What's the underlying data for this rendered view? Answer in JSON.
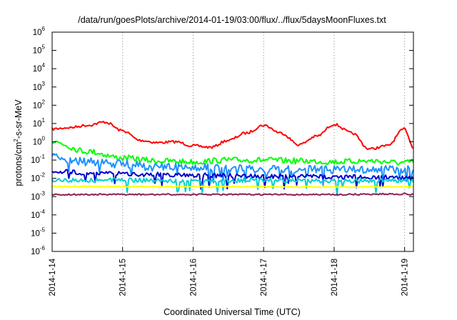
{
  "chart_data": {
    "type": "line",
    "title": "/data/run/goesPlots/archive/2014-01-19/03:00/flux/../flux/5daysMoonFluxes.txt",
    "xlabel": "Coordinated Universal Time (UTC)",
    "ylabel": "protons/cm²-s-sr-MeV",
    "ylabel_parts": [
      "protons/cm",
      "2",
      "-s-sr-MeV"
    ],
    "y_scale": "log",
    "ylim": [
      1e-06,
      1000000.0
    ],
    "xlim": [
      "2014-01-14",
      "2014-01-19 03:00"
    ],
    "x_ticks": [
      "2014-1-14",
      "2014-1-15",
      "2014-1-16",
      "2014-1-17",
      "2014-1-18",
      "2014-1-19"
    ],
    "y_ticks": [
      {
        "base": "10",
        "exp": "-6"
      },
      {
        "base": "10",
        "exp": "-5"
      },
      {
        "base": "10",
        "exp": "-4"
      },
      {
        "base": "10",
        "exp": "-3"
      },
      {
        "base": "10",
        "exp": "-2"
      },
      {
        "base": "10",
        "exp": "-1"
      },
      {
        "base": "10",
        "exp": "0"
      },
      {
        "base": "10",
        "exp": "1"
      },
      {
        "base": "10",
        "exp": "2"
      },
      {
        "base": "10",
        "exp": "3"
      },
      {
        "base": "10",
        "exp": "4"
      },
      {
        "base": "10",
        "exp": "5"
      },
      {
        "base": "10",
        "exp": "6"
      }
    ],
    "grid": "dotted vertical at day ticks",
    "series": [
      {
        "color": "#ff0000",
        "x": [
          "2014-01-14 00:00",
          "2014-01-14 06:00",
          "2014-01-14 12:00",
          "2014-01-14 18:00",
          "2014-01-15 00:00",
          "2014-01-15 06:00",
          "2014-01-15 12:00",
          "2014-01-15 18:00",
          "2014-01-16 00:00",
          "2014-01-16 06:00",
          "2014-01-16 12:00",
          "2014-01-16 18:00",
          "2014-01-17 00:00",
          "2014-01-17 06:00",
          "2014-01-17 12:00",
          "2014-01-17 18:00",
          "2014-01-18 00:00",
          "2014-01-18 06:00",
          "2014-01-18 12:00",
          "2014-01-18 18:00",
          "2014-01-19 00:00",
          "2014-01-19 03:00"
        ],
        "values": [
          5,
          6,
          8,
          12,
          4,
          1.2,
          0.9,
          1.0,
          0.6,
          0.5,
          1.2,
          3,
          8,
          3,
          0.7,
          2,
          9,
          3,
          0.4,
          0.6,
          5,
          0.5
        ]
      },
      {
        "color": "#00ff00",
        "x": [
          "2014-01-14 00:00",
          "2014-01-14 12:00",
          "2014-01-15 00:00",
          "2014-01-15 12:00",
          "2014-01-16 00:00",
          "2014-01-16 12:00",
          "2014-01-17 00:00",
          "2014-01-17 12:00",
          "2014-01-18 00:00",
          "2014-01-18 12:00",
          "2014-01-19 00:00",
          "2014-01-19 03:00"
        ],
        "values": [
          1.0,
          0.3,
          0.13,
          0.09,
          0.08,
          0.1,
          0.1,
          0.09,
          0.08,
          0.09,
          0.07,
          0.08
        ]
      },
      {
        "color": "#1e90ff",
        "x": [
          "2014-01-14 00:00",
          "2014-01-14 12:00",
          "2014-01-15 00:00",
          "2014-01-15 12:00",
          "2014-01-16 00:00",
          "2014-01-16 12:00",
          "2014-01-17 00:00",
          "2014-01-17 12:00",
          "2014-01-18 00:00",
          "2014-01-18 12:00",
          "2014-01-19 00:00",
          "2014-01-19 03:00"
        ],
        "values": [
          0.15,
          0.08,
          0.06,
          0.04,
          0.04,
          0.035,
          0.03,
          0.03,
          0.03,
          0.03,
          0.03,
          0.03
        ]
      },
      {
        "color": "#0000cd",
        "x": [
          "2014-01-14 00:00",
          "2014-01-14 12:00",
          "2014-01-15 00:00",
          "2014-01-15 12:00",
          "2014-01-16 00:00",
          "2014-01-16 12:00",
          "2014-01-17 00:00",
          "2014-01-17 12:00",
          "2014-01-18 00:00",
          "2014-01-18 12:00",
          "2014-01-19 00:00",
          "2014-01-19 03:00"
        ],
        "values": [
          0.025,
          0.02,
          0.018,
          0.016,
          0.015,
          0.014,
          0.013,
          0.013,
          0.012,
          0.012,
          0.011,
          0.011
        ]
      },
      {
        "color": "#00ced1",
        "x": [
          "2014-01-14 00:00",
          "2014-01-15 00:00",
          "2014-01-16 00:00",
          "2014-01-17 00:00",
          "2014-01-18 00:00",
          "2014-01-19 00:00",
          "2014-01-19 03:00"
        ],
        "values": [
          0.008,
          0.008,
          0.007,
          0.008,
          0.007,
          0.008,
          0.007
        ]
      },
      {
        "color": "#ffff00",
        "x": [
          "2014-01-14 00:00",
          "2014-01-15 00:00",
          "2014-01-16 00:00",
          "2014-01-17 00:00",
          "2014-01-18 00:00",
          "2014-01-19 00:00",
          "2014-01-19 03:00"
        ],
        "values": [
          0.0035,
          0.0035,
          0.0035,
          0.0035,
          0.0034,
          0.0035,
          0.0035
        ]
      },
      {
        "color": "#8b2252",
        "x": [
          "2014-01-14 00:00",
          "2014-01-15 00:00",
          "2014-01-16 00:00",
          "2014-01-17 00:00",
          "2014-01-18 00:00",
          "2014-01-19 00:00",
          "2014-01-19 03:00"
        ],
        "values": [
          0.0013,
          0.0013,
          0.0013,
          0.0013,
          0.0013,
          0.0014,
          0.0013
        ]
      }
    ]
  }
}
